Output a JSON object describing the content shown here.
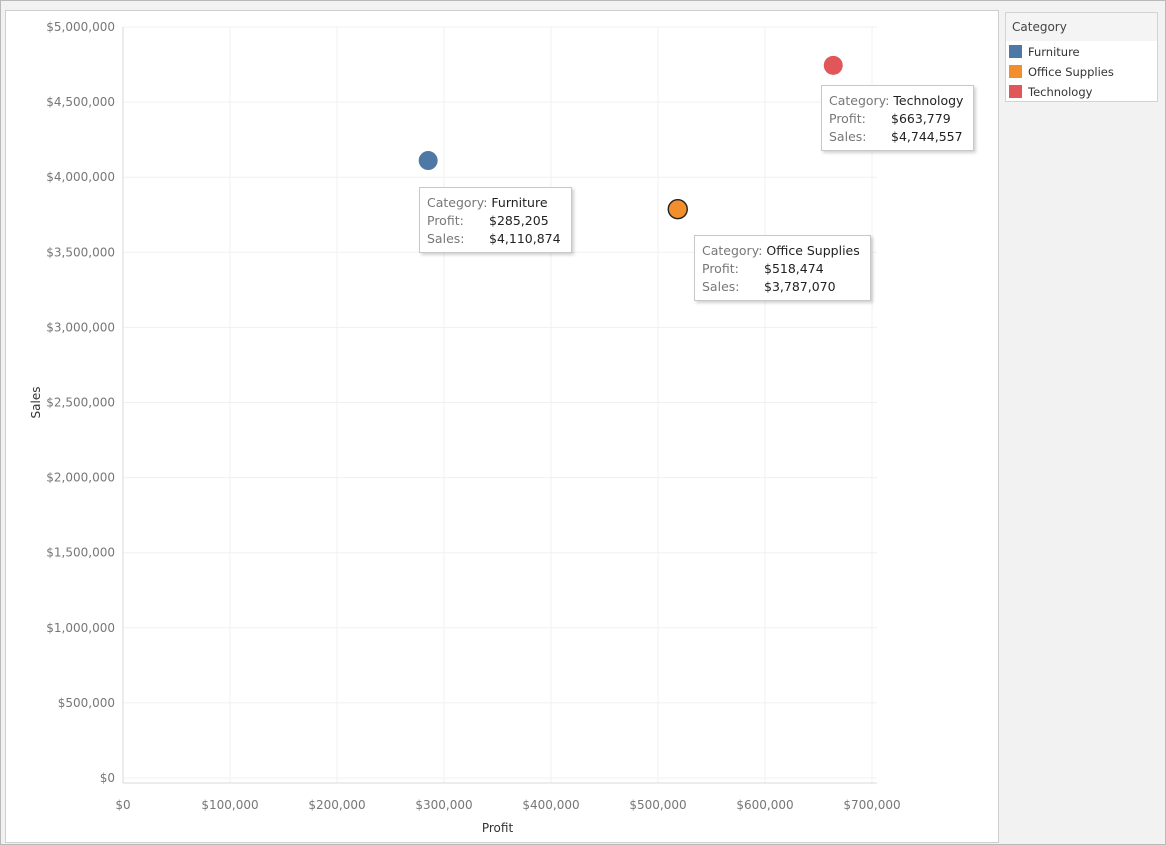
{
  "chart_data": {
    "type": "scatter",
    "xlabel": "Profit",
    "ylabel": "Sales",
    "xlim": [
      0,
      700000
    ],
    "ylim": [
      0,
      5000000
    ],
    "x_ticks": [
      0,
      100000,
      200000,
      300000,
      400000,
      500000,
      600000,
      700000
    ],
    "x_tick_labels": [
      "$0",
      "$100,000",
      "$200,000",
      "$300,000",
      "$400,000",
      "$500,000",
      "$600,000",
      "$700,000"
    ],
    "y_ticks": [
      0,
      500000,
      1000000,
      1500000,
      2000000,
      2500000,
      3000000,
      3500000,
      4000000,
      4500000,
      5000000
    ],
    "y_tick_labels": [
      "$0",
      "$500,000",
      "$1,000,000",
      "$1,500,000",
      "$2,000,000",
      "$2,500,000",
      "$3,000,000",
      "$3,500,000",
      "$4,000,000",
      "$4,500,000",
      "$5,000,000"
    ],
    "grid": true,
    "legend_position": "right",
    "legend_title": "Category",
    "points": [
      {
        "category": "Furniture",
        "x": 285205,
        "y": 4110874,
        "color": "#4e79a7",
        "profit_label": "$285,205",
        "sales_label": "$4,110,874"
      },
      {
        "category": "Office Supplies",
        "x": 518474,
        "y": 3787070,
        "color": "#f28e2b",
        "profit_label": "$518,474",
        "sales_label": "$3,787,070"
      },
      {
        "category": "Technology",
        "x": 663779,
        "y": 4744557,
        "color": "#e15759",
        "profit_label": "$663,779",
        "sales_label": "$4,744,557"
      }
    ]
  },
  "tooltips": {
    "category_label": "Category:",
    "profit_label": "Profit:",
    "sales_label": "Sales:"
  }
}
